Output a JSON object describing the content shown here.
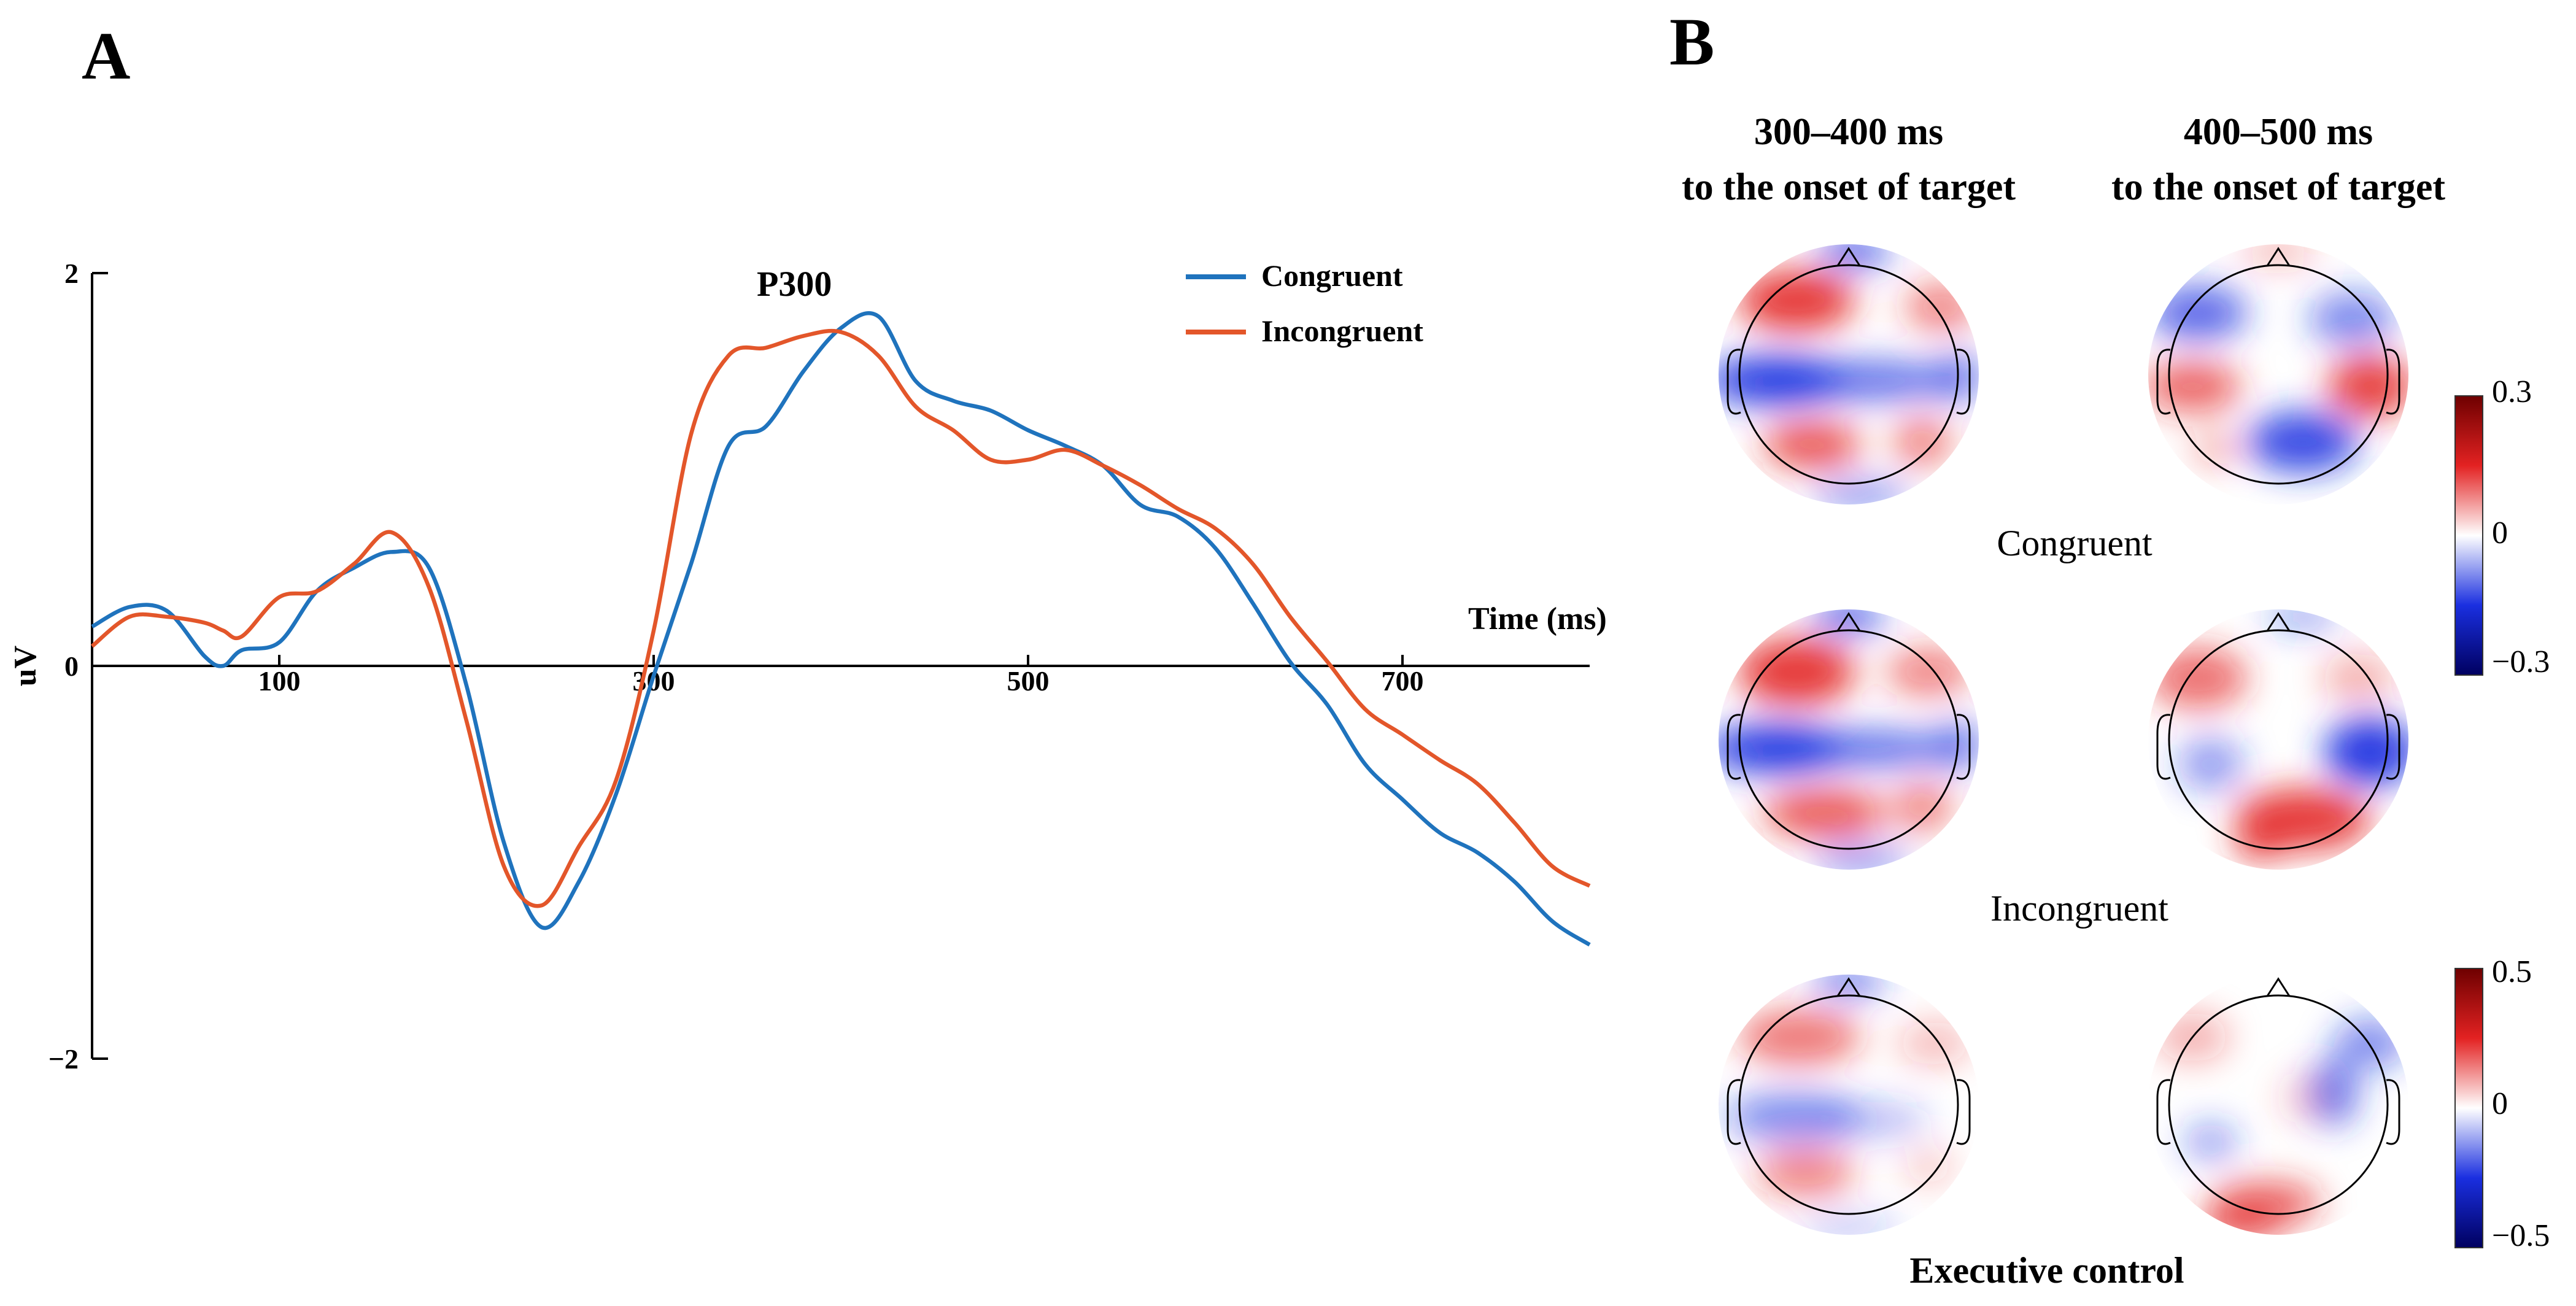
{
  "panel_a": {
    "label": "A",
    "annotation": "P300",
    "legend": [
      {
        "name": "Congruent",
        "color": "#1f73bd"
      },
      {
        "name": "Incongruent",
        "color": "#e3562a"
      }
    ]
  },
  "panel_b": {
    "label": "B",
    "col_headers": [
      {
        "line1": "300–400 ms",
        "line2": "to the onset of target"
      },
      {
        "line1": "400–500 ms",
        "line2": "to the onset of target"
      }
    ],
    "row_labels": [
      "Congruent",
      "Incongruent",
      "Executive control"
    ],
    "colorbar_top": {
      "max": "0.3",
      "mid": "0",
      "min": "−0.3"
    },
    "colorbar_bottom": {
      "max": "0.5",
      "mid": "0",
      "min": "−0.5"
    },
    "colors": {
      "positive": "#e32222",
      "negative": "#1a2fe0",
      "neutral": "#ffffff",
      "dark_red": "#6e0000",
      "dark_blue": "#000060"
    }
  },
  "chart_data": {
    "type": "line",
    "title": "",
    "xlabel": "Time (ms)",
    "ylabel": "uV",
    "xlim": [
      0,
      800
    ],
    "ylim": [
      -2,
      2
    ],
    "x_ticks": [
      100,
      300,
      500,
      700
    ],
    "y_ticks": [
      -2,
      0,
      2
    ],
    "x_tick_labels": [
      "100",
      "300",
      "500",
      "700"
    ],
    "y_tick_labels": [
      "−2",
      "0",
      "2"
    ],
    "x": [
      0,
      20,
      40,
      60,
      70,
      80,
      100,
      120,
      140,
      160,
      180,
      200,
      220,
      240,
      260,
      280,
      300,
      320,
      340,
      360,
      380,
      400,
      420,
      440,
      460,
      480,
      500,
      520,
      540,
      560,
      580,
      600,
      620,
      640,
      660,
      680,
      700,
      720,
      740,
      760,
      780,
      800
    ],
    "series": [
      {
        "name": "Congruent",
        "values": [
          0.2,
          0.3,
          0.28,
          0.05,
          0.0,
          0.08,
          0.12,
          0.38,
          0.5,
          0.58,
          0.5,
          -0.1,
          -0.9,
          -1.33,
          -1.1,
          -0.65,
          -0.05,
          0.52,
          1.12,
          1.22,
          1.5,
          1.72,
          1.78,
          1.45,
          1.35,
          1.3,
          1.2,
          1.12,
          1.02,
          0.82,
          0.76,
          0.6,
          0.32,
          0.02,
          -0.2,
          -0.5,
          -0.68,
          -0.85,
          -0.95,
          -1.1,
          -1.3,
          -1.42
        ]
      },
      {
        "name": "Incongruent",
        "values": [
          0.1,
          0.25,
          0.25,
          0.22,
          0.18,
          0.15,
          0.35,
          0.38,
          0.52,
          0.68,
          0.4,
          -0.28,
          -1.02,
          -1.22,
          -0.92,
          -0.58,
          0.18,
          1.18,
          1.58,
          1.62,
          1.68,
          1.7,
          1.58,
          1.32,
          1.2,
          1.05,
          1.05,
          1.1,
          1.02,
          0.92,
          0.8,
          0.7,
          0.52,
          0.25,
          0.02,
          -0.22,
          -0.35,
          -0.48,
          -0.6,
          -0.8,
          -1.02,
          -1.12
        ]
      }
    ]
  }
}
